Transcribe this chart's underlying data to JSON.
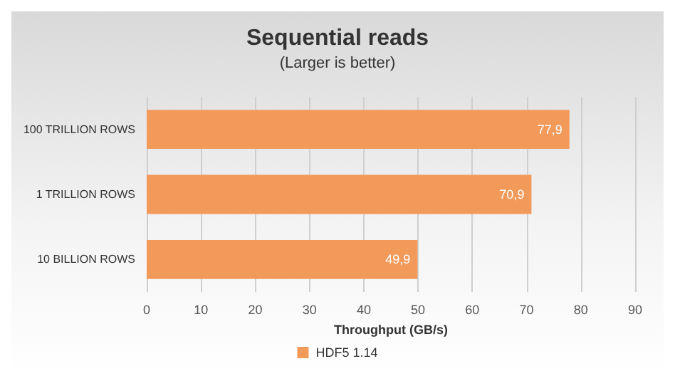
{
  "chart_data": {
    "type": "bar",
    "orientation": "horizontal",
    "title": "Sequential reads",
    "subtitle": "(Larger is better)",
    "xlabel": "Throughput (GB/s)",
    "categories": [
      "100 TRILLION ROWS",
      "1 TRILLION ROWS",
      "10 BILLION ROWS"
    ],
    "series": [
      {
        "name": "HDF5 1.14",
        "color": "#f29a5a",
        "values": [
          77.9,
          70.9,
          49.9
        ],
        "value_labels": [
          "77,9",
          "70,9",
          "49,9"
        ]
      }
    ],
    "xlim": [
      0,
      90
    ],
    "xticks": [
      0,
      10,
      20,
      30,
      40,
      50,
      60,
      70,
      80,
      90
    ],
    "grid": "x",
    "legend": "bottom"
  }
}
